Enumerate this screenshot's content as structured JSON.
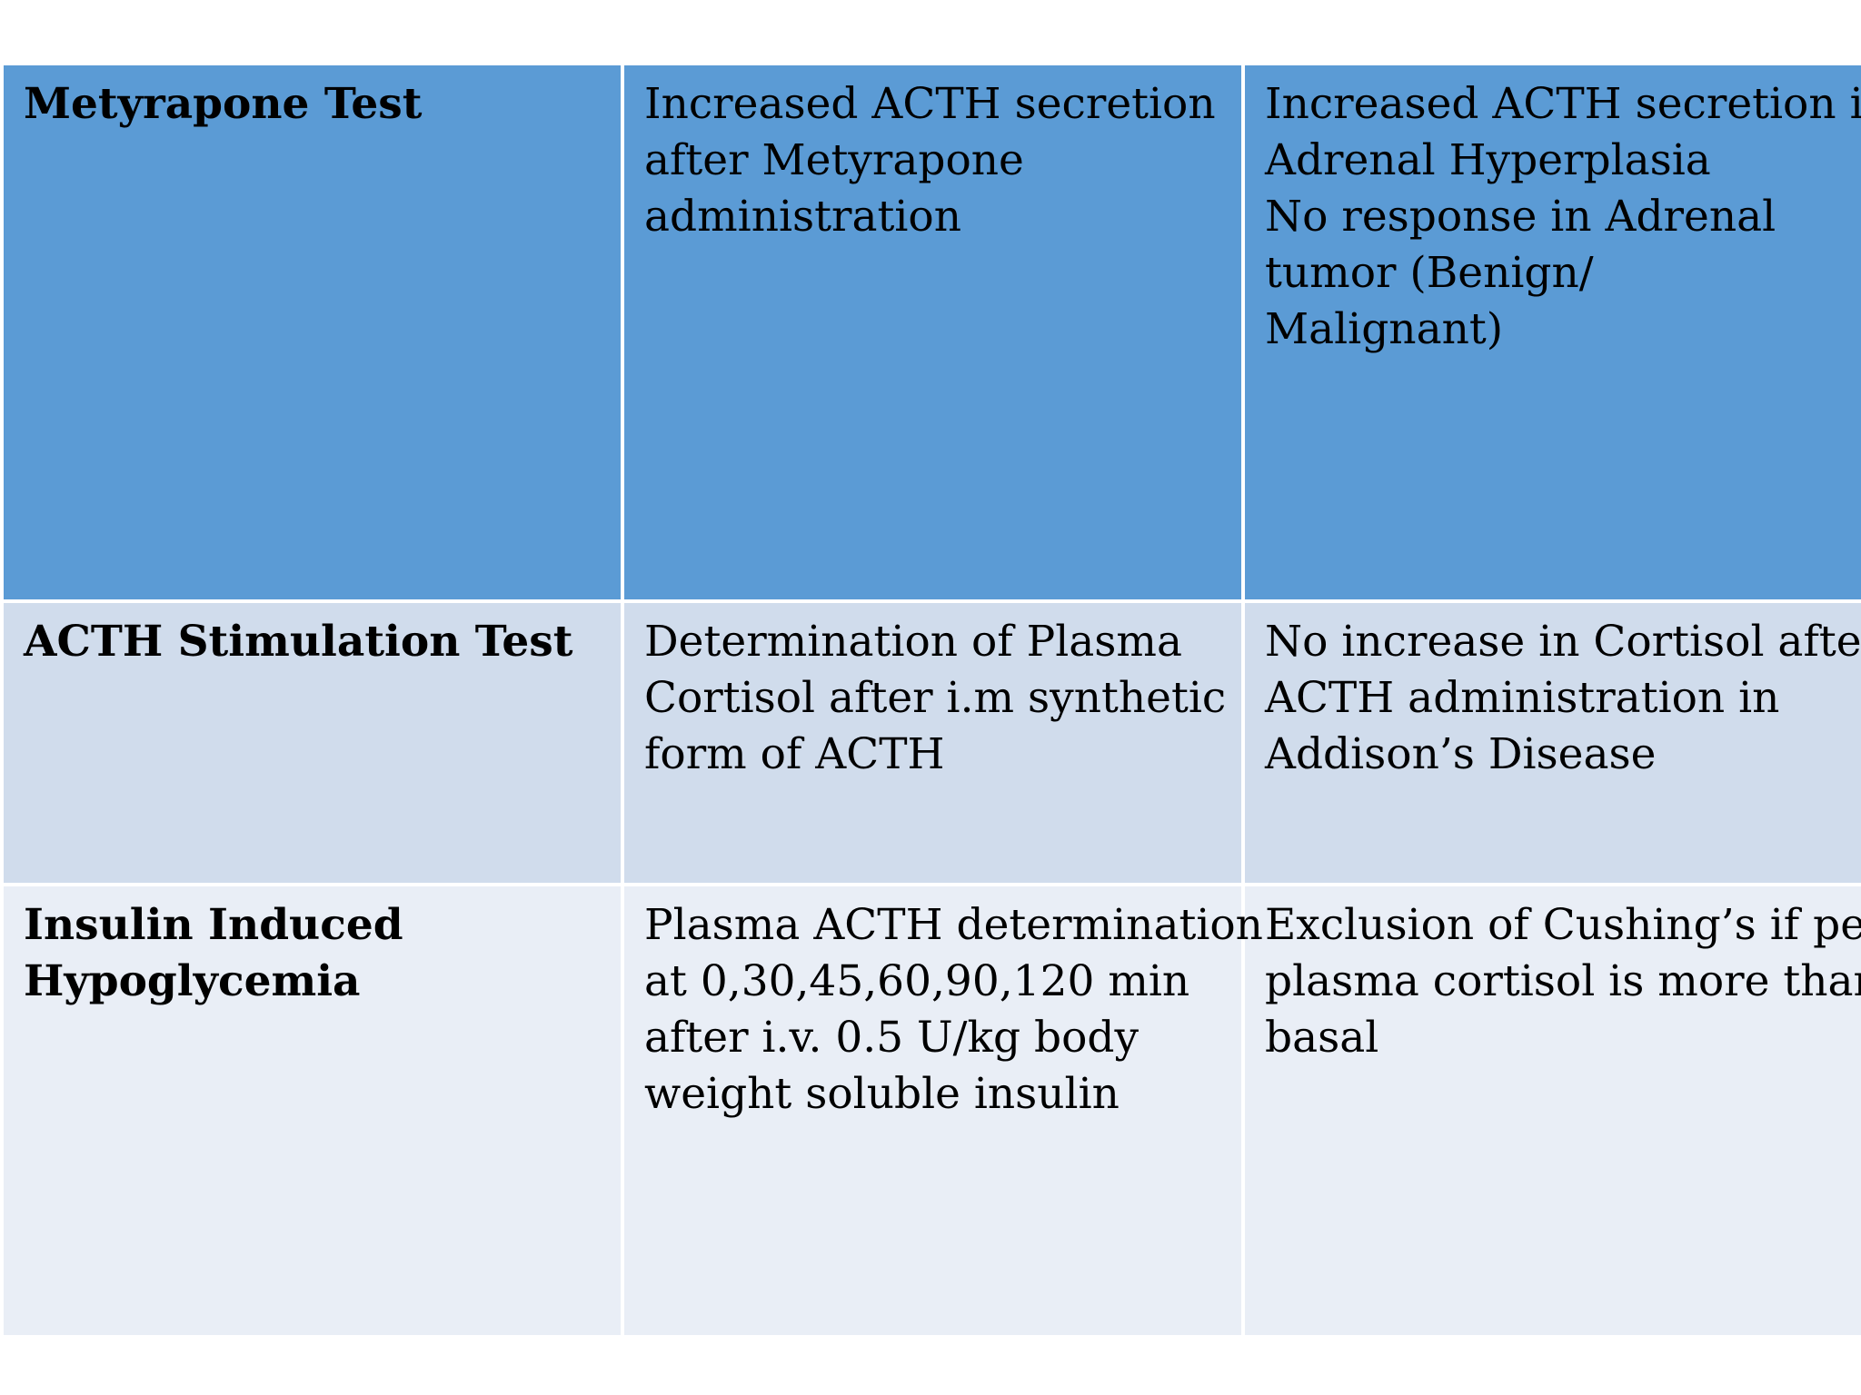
{
  "colors": {
    "header_row_bg": "#5b9bd5",
    "alt_row_bg": "#d0dcec",
    "light_row_bg": "#e9eef6",
    "border": "#ffffff",
    "text": "#000000"
  },
  "table": {
    "rows": [
      {
        "test": [
          "Metyrapone Test"
        ],
        "procedure": [
          "Increased ACTH secretion",
          "after Metyrapone",
          "administration"
        ],
        "interpretation": [
          "Increased ACTH secretion in",
          "Adrenal Hyperplasia",
          "No response in Adrenal",
          "tumor (Benign/",
          "Malignant)"
        ]
      },
      {
        "test": [
          "ACTH Stimulation Test"
        ],
        "procedure": [
          "Determination of Plasma",
          "Cortisol after i.m synthetic",
          "form of ACTH"
        ],
        "interpretation": [
          "No increase in Cortisol after",
          "ACTH administration in",
          "Addison’s Disease"
        ]
      },
      {
        "test": [
          "Insulin Induced",
          "Hypoglycemia"
        ],
        "procedure": [
          "Plasma ACTH determination",
          "at 0,30,45,60,90,120 min",
          "after i.v. 0.5 U/kg body",
          "weight soluble insulin"
        ],
        "interpretation": [
          "Exclusion of Cushing’s if peak",
          "plasma cortisol is more than",
          "basal"
        ]
      }
    ]
  }
}
